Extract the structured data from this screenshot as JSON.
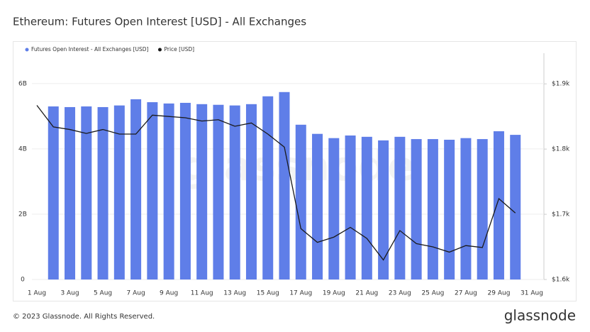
{
  "chart_data": {
    "type": "bar",
    "title": "Ethereum: Futures Open Interest [USD] - All Exchanges",
    "watermark": "glassnode",
    "footer": "© 2023 Glassnode. All Rights Reserved.",
    "brand": "glassnode",
    "categories": [
      "1 Aug",
      null,
      "3 Aug",
      null,
      "5 Aug",
      null,
      "7 Aug",
      null,
      "9 Aug",
      null,
      "11 Aug",
      null,
      "13 Aug",
      null,
      "15 Aug",
      null,
      "17 Aug",
      null,
      "19 Aug",
      null,
      "21 Aug",
      null,
      "23 Aug",
      null,
      "25 Aug",
      null,
      "27 Aug",
      null,
      "29 Aug",
      null,
      "31 Aug"
    ],
    "series": [
      {
        "name": "Futures Open Interest - All Exchanges [USD]",
        "type": "bar",
        "color": "#5f7ee8",
        "values": [
          null,
          5300000000,
          5280000000,
          5300000000,
          5280000000,
          5330000000,
          5520000000,
          5430000000,
          5390000000,
          5410000000,
          5370000000,
          5350000000,
          5330000000,
          5370000000,
          5610000000,
          5740000000,
          4740000000,
          4460000000,
          4330000000,
          4410000000,
          4370000000,
          4260000000,
          4370000000,
          4300000000,
          4300000000,
          4280000000,
          4330000000,
          4300000000,
          4540000000,
          4430000000,
          null
        ]
      },
      {
        "name": "Price [USD]",
        "type": "line",
        "color": "#1a1a1a",
        "axis": "y2",
        "values": [
          1867,
          1834,
          1830,
          1824,
          1830,
          1823,
          1823,
          1852,
          1850,
          1848,
          1843,
          1845,
          1835,
          1840,
          1823,
          1803,
          1678,
          1657,
          1665,
          1680,
          1663,
          1630,
          1675,
          1655,
          1650,
          1642,
          1652,
          1649,
          1724,
          1702,
          null
        ]
      }
    ],
    "ylim": [
      0,
      6930000000
    ],
    "yticks": [
      {
        "value": 0,
        "label": "0"
      },
      {
        "value": 2000000000,
        "label": "2B"
      },
      {
        "value": 4000000000,
        "label": "4B"
      },
      {
        "value": 6000000000,
        "label": "6B"
      }
    ],
    "y2lim": [
      1600,
      1947
    ],
    "y2ticks": [
      {
        "value": 1600,
        "label": "$1.6k"
      },
      {
        "value": 1700,
        "label": "$1.7k"
      },
      {
        "value": 1800,
        "label": "$1.8k"
      },
      {
        "value": 1900,
        "label": "$1.9k"
      }
    ],
    "grid": true,
    "legend": "top-left"
  }
}
